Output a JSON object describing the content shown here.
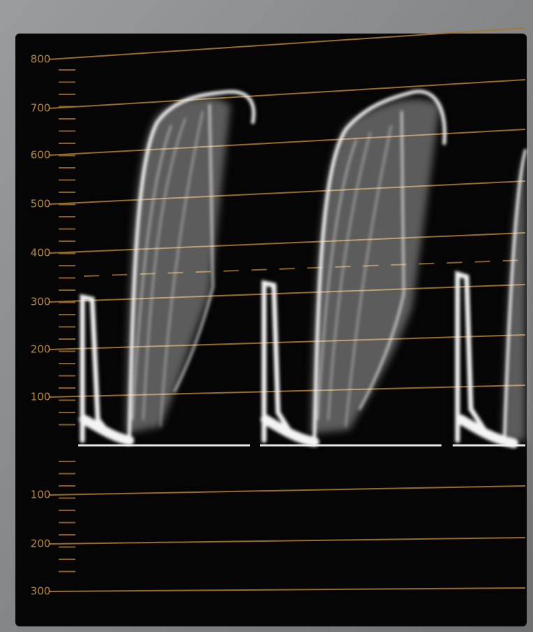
{
  "scale": {
    "labels": [
      "800",
      "700",
      "600",
      "500",
      "400",
      "300",
      "200",
      "100",
      "100",
      "200",
      "300"
    ]
  }
}
